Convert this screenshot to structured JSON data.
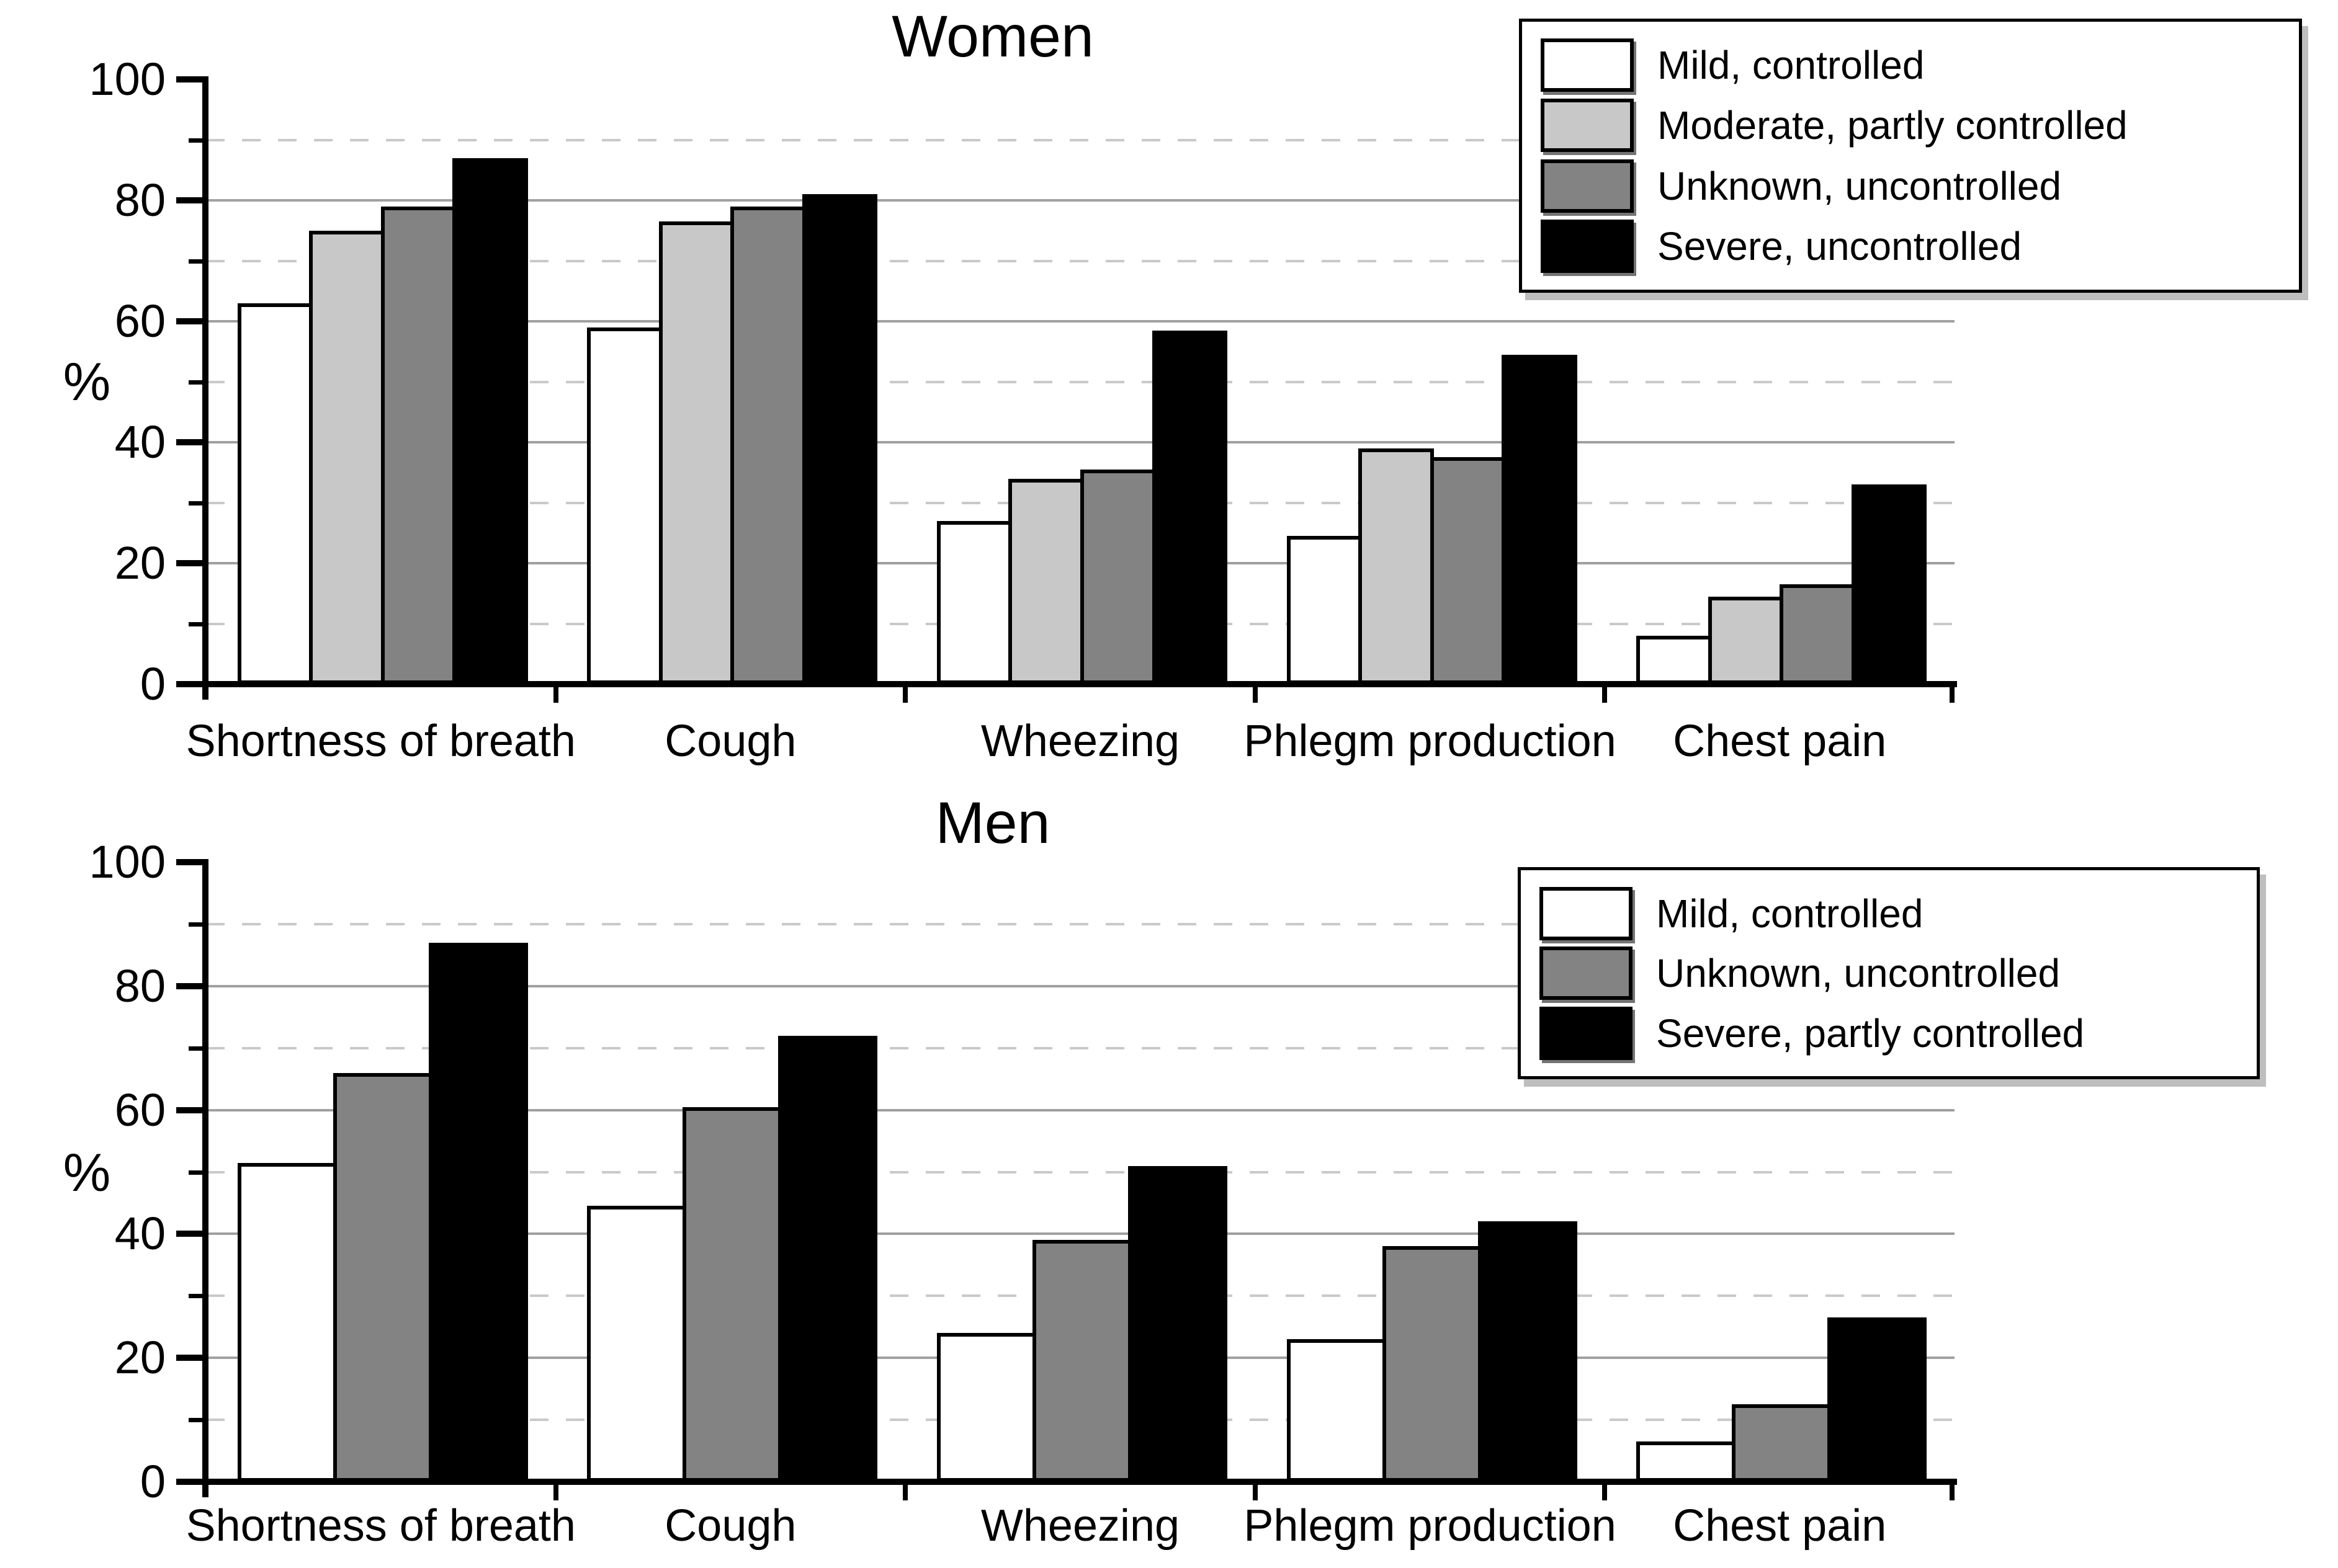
{
  "figure": {
    "background": "#ffffff"
  },
  "chart_data": {
    "type": "bar",
    "ylabel": "%",
    "ylim": [
      0,
      100
    ],
    "yticks_major": [
      0,
      20,
      40,
      60,
      80,
      100
    ],
    "yticks_minor": [
      10,
      30,
      50,
      70,
      90
    ],
    "grid": {
      "solid_at": [
        20,
        40,
        60,
        80
      ],
      "dashed_at": [
        10,
        30,
        50,
        70,
        90
      ]
    },
    "categories": [
      "Shortness of breath",
      "Cough",
      "Wheezing",
      "Phlegm production",
      "Chest pain"
    ],
    "bar_colors": {
      "white": "#ffffff",
      "light_gray": "#c8c8c8",
      "dark_gray": "#838383",
      "black": "#000000"
    },
    "charts": [
      {
        "title": "Women",
        "legend_position": "top-right",
        "series": [
          {
            "name": "Mild, controlled",
            "color": "#ffffff",
            "values": [
              63,
              59,
              27,
              24.5,
              8
            ]
          },
          {
            "name": "Moderate, partly controlled",
            "color": "#c8c8c8",
            "values": [
              75,
              76.5,
              34,
              39,
              14.5
            ]
          },
          {
            "name": "Unknown, uncontrolled",
            "color": "#838383",
            "values": [
              79,
              79,
              35.5,
              37.5,
              16.5
            ]
          },
          {
            "name": "Severe, uncontrolled",
            "color": "#000000",
            "values": [
              87,
              81,
              58.5,
              54.5,
              33
            ]
          }
        ]
      },
      {
        "title": "Men",
        "legend_position": "top-right",
        "series": [
          {
            "name": "Mild, controlled",
            "color": "#ffffff",
            "values": [
              51.5,
              44.5,
              24,
              23,
              6.5
            ]
          },
          {
            "name": "Unknown, uncontrolled",
            "color": "#838383",
            "values": [
              66,
              60.5,
              39,
              38,
              12.5
            ]
          },
          {
            "name": "Severe, partly controlled",
            "color": "#000000",
            "values": [
              87,
              72,
              51,
              42,
              26.5
            ]
          }
        ]
      }
    ]
  }
}
